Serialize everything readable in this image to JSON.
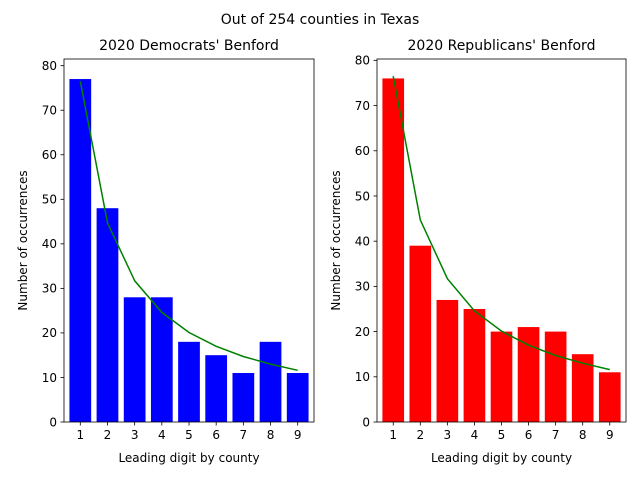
{
  "suptitle": "Out of 254 counties in Texas",
  "chart_data": [
    {
      "type": "bar",
      "title": "2020 Democrats' Benford",
      "xlabel": "Leading digit by county",
      "ylabel": "Number of occurrences",
      "categories": [
        "1",
        "2",
        "3",
        "4",
        "5",
        "6",
        "7",
        "8",
        "9"
      ],
      "values": [
        77,
        48,
        28,
        28,
        18,
        15,
        11,
        18,
        11
      ],
      "expected_line": [
        76.5,
        44.7,
        31.7,
        24.6,
        20.1,
        17.0,
        14.7,
        13.0,
        11.6
      ],
      "yticks": [
        "0",
        "10",
        "20",
        "30",
        "40",
        "50",
        "60",
        "70",
        "80"
      ],
      "ylim": [
        0,
        81.5
      ],
      "bar_color": "#0000ff",
      "line_color": "#008000",
      "grid": false
    },
    {
      "type": "bar",
      "title": "2020 Republicans' Benford",
      "xlabel": "Leading digit by county",
      "ylabel": "Number of occurrences",
      "categories": [
        "1",
        "2",
        "3",
        "4",
        "5",
        "6",
        "7",
        "8",
        "9"
      ],
      "values": [
        76,
        39,
        27,
        25,
        20,
        21,
        20,
        15,
        11
      ],
      "expected_line": [
        76.5,
        44.7,
        31.7,
        24.6,
        20.1,
        17.0,
        14.7,
        13.0,
        11.6
      ],
      "yticks": [
        "0",
        "10",
        "20",
        "30",
        "40",
        "50",
        "60",
        "70",
        "80"
      ],
      "ylim": [
        0,
        80.3
      ],
      "bar_color": "#ff0000",
      "line_color": "#008000",
      "grid": false
    }
  ]
}
